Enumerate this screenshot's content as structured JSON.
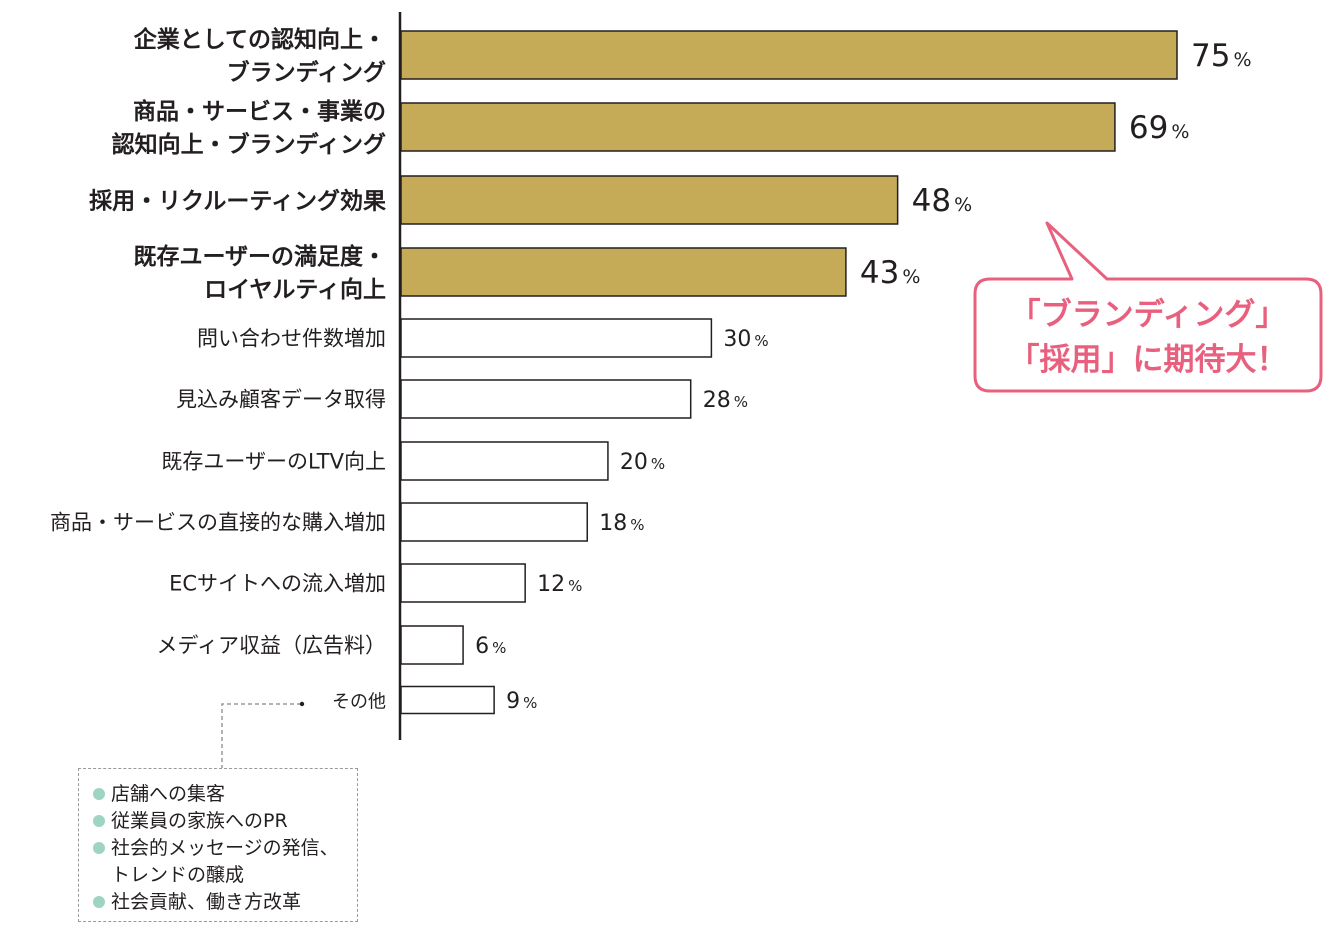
{
  "chart_data": {
    "type": "bar",
    "orientation": "horizontal",
    "categories": [
      "企業としての認知向上・\nブランディング",
      "商品・サービス・事業の\n認知向上・ブランディング",
      "採用・リクルーティング効果",
      "既存ユーザーの満足度・\nロイヤルティ向上",
      "問い合わせ件数増加",
      "見込み顧客データ取得",
      "既存ユーザーのLTV向上",
      "商品・サービスの直接的な購入増加",
      "ECサイトへの流入増加",
      "メディア収益（広告料）",
      "その他"
    ],
    "values": [
      75,
      69,
      48,
      43,
      30,
      28,
      20,
      18,
      12,
      6,
      9
    ],
    "highlighted": [
      true,
      true,
      true,
      true,
      false,
      false,
      false,
      false,
      false,
      false,
      false
    ],
    "value_suffix": "%",
    "xlim": [
      0,
      81
    ],
    "grid": false,
    "colors": {
      "highlight": "#c5ab57",
      "plain": "#ffffff",
      "outline": "#231f20",
      "axis": "#231f20"
    },
    "callout": {
      "lines": [
        "「ブランディング」",
        "「採用」に期待大！"
      ],
      "color": "#e8607e"
    },
    "other_note": {
      "dot_color": "#9fd3c2",
      "items": [
        "店舗への集客",
        "従業員の家族へのPR",
        "社会的メッセージの発信、\nトレンドの醸成",
        "社会貢献、働き方改革"
      ]
    }
  }
}
